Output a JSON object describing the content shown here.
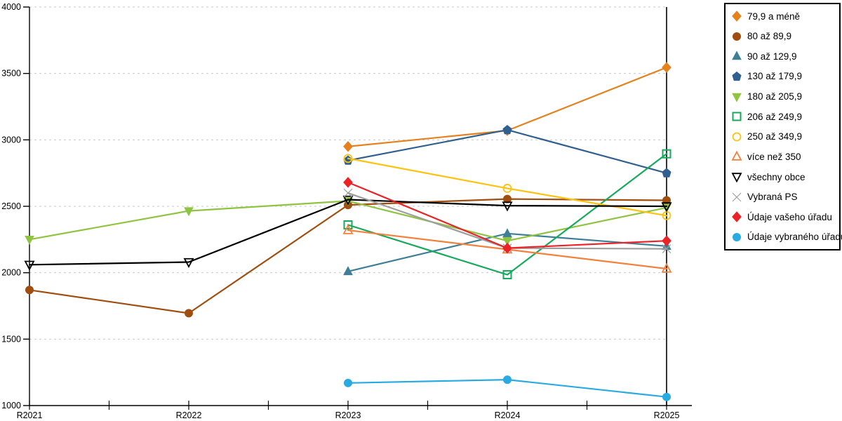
{
  "chart_data": {
    "type": "line",
    "title": "",
    "xlabel": "",
    "ylabel": "",
    "categories": [
      "R2021",
      "R2022",
      "R2023",
      "R2024",
      "R2025"
    ],
    "ylim": [
      1000,
      4000
    ],
    "yticks": [
      1000,
      1500,
      2000,
      2500,
      3000,
      3500,
      4000
    ],
    "grid": "horizontal-dashed",
    "legend_position": "right-outside",
    "series": [
      {
        "name": "79,9 a méně",
        "marker": "diamond",
        "filled": true,
        "color": "#E6821E",
        "values": [
          null,
          null,
          2950,
          3070,
          3545
        ]
      },
      {
        "name": "80 až 89,9",
        "marker": "circle",
        "filled": true,
        "color": "#A04E10",
        "values": [
          1870,
          1695,
          2510,
          2555,
          2545
        ]
      },
      {
        "name": "90 až 129,9",
        "marker": "triangle-up",
        "filled": true,
        "color": "#3E7E96",
        "values": [
          null,
          null,
          2010,
          2295,
          2200
        ]
      },
      {
        "name": "130 až 179,9",
        "marker": "pentagon",
        "filled": true,
        "color": "#2F608F",
        "values": [
          null,
          null,
          2845,
          3075,
          2750
        ]
      },
      {
        "name": "180 až 205,9",
        "marker": "triangle-down",
        "filled": true,
        "color": "#8EC440",
        "values": [
          2250,
          2465,
          2540,
          2240,
          2490
        ]
      },
      {
        "name": "206 až 249,9",
        "marker": "square",
        "filled": false,
        "color": "#17A95C",
        "values": [
          null,
          null,
          2360,
          1985,
          2895
        ]
      },
      {
        "name": "250 až 349,9",
        "marker": "circle",
        "filled": false,
        "color": "#FFC20E",
        "values": [
          null,
          null,
          2860,
          2635,
          2430
        ]
      },
      {
        "name": "více než 350",
        "marker": "triangle-up",
        "filled": false,
        "color": "#F5803C",
        "values": [
          null,
          null,
          2320,
          2175,
          2030
        ]
      },
      {
        "name": "všechny obce",
        "marker": "triangle-down",
        "filled": false,
        "color": "#000000",
        "values": [
          2060,
          2080,
          2550,
          2505,
          2500
        ]
      },
      {
        "name": "Vybraná PS",
        "marker": "x",
        "filled": false,
        "color": "#9E9E9E",
        "values": [
          null,
          null,
          2600,
          2185,
          2180
        ]
      },
      {
        "name": "Údaje vašeho úřadu",
        "marker": "diamond",
        "filled": true,
        "color": "#EC2227",
        "values": [
          null,
          null,
          2680,
          2185,
          2240
        ]
      },
      {
        "name": "Údaje vybraného úřadu",
        "marker": "circle",
        "filled": true,
        "color": "#29ABE2",
        "values": [
          null,
          null,
          1170,
          1195,
          1065
        ]
      }
    ],
    "colors": {
      "axis": "#000000",
      "gridline": "#C9C9C9",
      "tick_label": "#000000",
      "background": "#FFFFFF"
    }
  }
}
